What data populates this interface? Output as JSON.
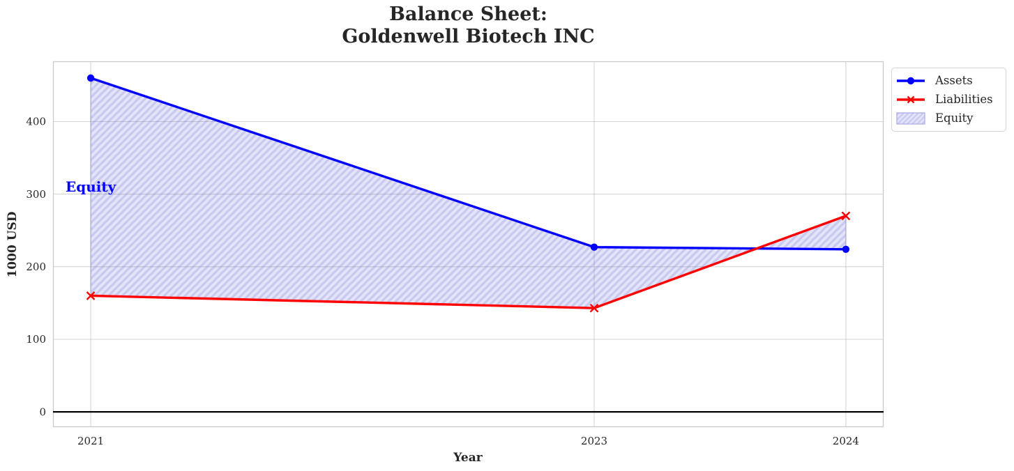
{
  "figure": {
    "background": "#ffffff",
    "text_color": "#262626"
  },
  "chart_data": {
    "type": "line",
    "title_lines": [
      "Balance Sheet:",
      "Goldenwell Biotech INC"
    ],
    "title": "Balance Sheet:\nGoldenwell Biotech INC",
    "xlabel": "Year",
    "ylabel": "1000 USD",
    "x": [
      2021,
      2023,
      2024
    ],
    "xtick_labels": [
      "2021",
      "2023",
      "2024"
    ],
    "yticks": [
      0,
      100,
      200,
      300,
      400
    ],
    "ytick_labels": [
      "0",
      "100",
      "200",
      "300",
      "400"
    ],
    "xlim": [
      2020.85,
      2024.15
    ],
    "ylim": [
      -21,
      483
    ],
    "grid": true,
    "grid_color": "#d9d9d9",
    "spine_color": "#c9c9c9",
    "tick_label_color": "#262626",
    "series": [
      {
        "name": "Assets",
        "color": "#0000ff",
        "marker": "circle",
        "values": [
          460,
          227,
          224
        ]
      },
      {
        "name": "Liabilities",
        "color": "#ff0000",
        "marker": "x",
        "values": [
          160,
          143,
          270
        ]
      }
    ],
    "equity_fill": {
      "label": "Equity",
      "between": [
        "Assets",
        "Liabilities"
      ],
      "values": [
        300,
        84,
        -46
      ],
      "face_color": "#e3e3f9",
      "hatch_color": "#c9c9f0",
      "edge_color": "#b2b2ec",
      "hatch": "//"
    },
    "zero_line": {
      "y": 0,
      "color": "#000000"
    },
    "annotation": {
      "text": "Equity",
      "x": 2021,
      "y": 310,
      "color": "#0000ff"
    },
    "legend_position": "outside upper right"
  }
}
